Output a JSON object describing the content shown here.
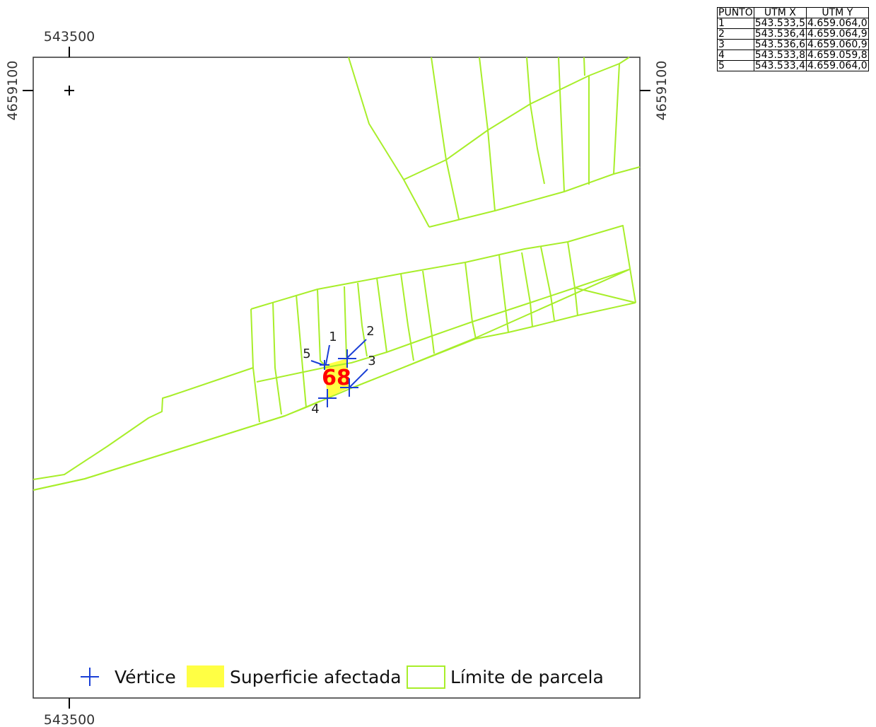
{
  "map": {
    "x_tick_top": "543500",
    "x_tick_bottom": "543500",
    "y_tick_left": "4659100",
    "y_tick_right": "4659100",
    "parcel_label": "68",
    "colors": {
      "parcel_boundary": "#a8ee2a",
      "affected_area": "#ffff44",
      "vertex": "#1a3fd6",
      "parcel_label": "#ff0000"
    },
    "vertices": [
      {
        "label": "1"
      },
      {
        "label": "2"
      },
      {
        "label": "3"
      },
      {
        "label": "4"
      },
      {
        "label": "5"
      }
    ]
  },
  "legend": {
    "vertex_label": "Vértice",
    "affected_label": "Superficie afectada",
    "boundary_label": "Límite de parcela"
  },
  "coord_table": {
    "headers": [
      "PUNTO",
      "UTM X",
      "UTM Y"
    ],
    "rows": [
      [
        "1",
        "543.533,5",
        "4.659.064,0"
      ],
      [
        "2",
        "543.536,4",
        "4.659.064,9"
      ],
      [
        "3",
        "543.536,6",
        "4.659.060,9"
      ],
      [
        "4",
        "543.533,8",
        "4.659.059,8"
      ],
      [
        "5",
        "543.533,4",
        "4.659.064,0"
      ]
    ]
  }
}
